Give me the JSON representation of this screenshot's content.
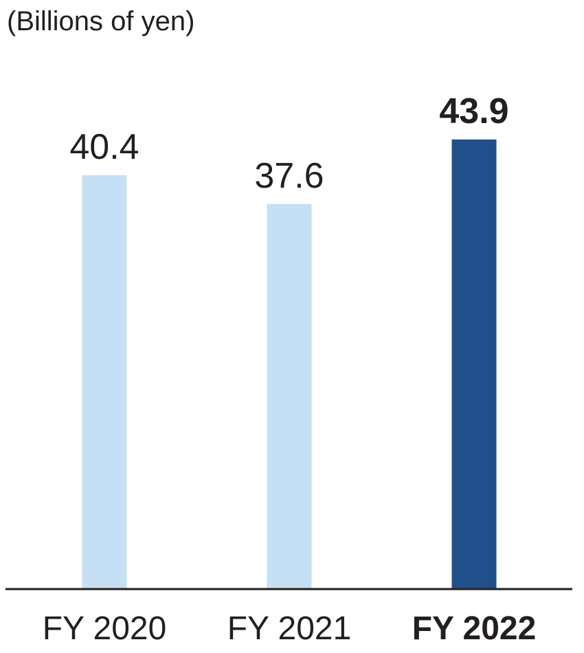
{
  "chart_data": {
    "type": "bar",
    "unit_label": "(Billions of yen)",
    "categories": [
      "FY 2020",
      "FY 2021",
      "FY 2022"
    ],
    "values": [
      40.4,
      37.6,
      43.9
    ],
    "value_labels": [
      "40.4",
      "37.6",
      "43.9"
    ],
    "highlight_index": 2,
    "ylim": [
      0,
      50
    ],
    "grid": false,
    "colors": {
      "bar": "#c5dff4",
      "highlight_bar": "#214f8b",
      "axis": "#231f20",
      "text": "#231f20"
    }
  }
}
